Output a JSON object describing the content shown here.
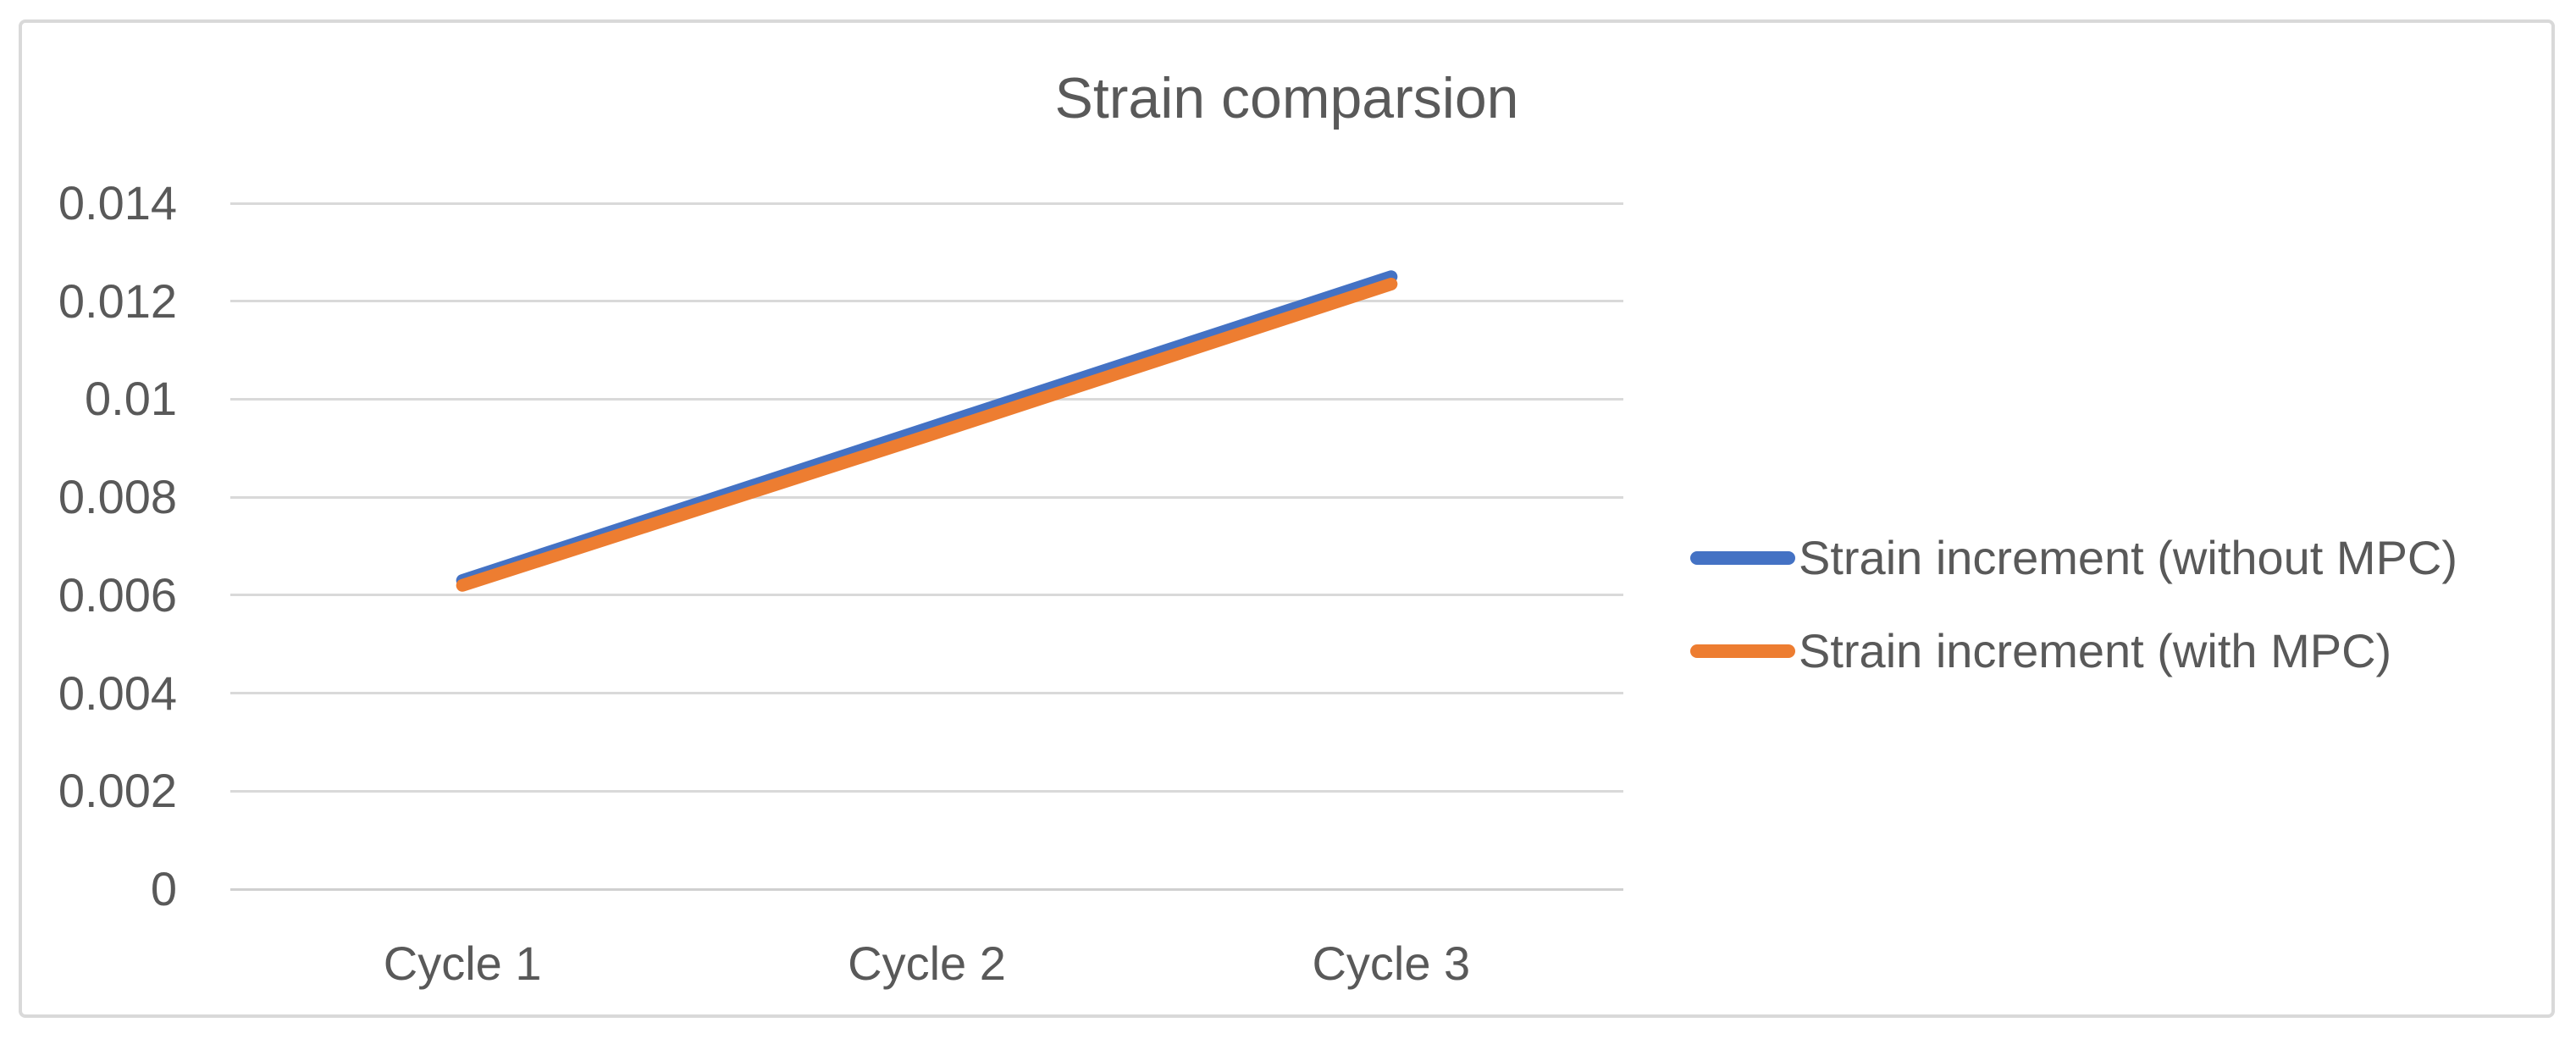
{
  "chart": {
    "title": "Strain comparsion"
  },
  "chart_data": {
    "type": "line",
    "title": "Strain comparsion",
    "categories": [
      "Cycle 1",
      "Cycle 2",
      "Cycle 3"
    ],
    "series": [
      {
        "name": "Strain increment (without MPC)",
        "color": "#4472C4",
        "values": [
          0.0063,
          0.0094,
          0.0125
        ]
      },
      {
        "name": "Strain increment (with MPC)",
        "color": "#ED7D31",
        "values": [
          0.0062,
          0.00925,
          0.01235
        ]
      }
    ],
    "xlabel": "",
    "ylabel": "",
    "ylim": [
      0,
      0.014
    ],
    "ytick_step": 0.002,
    "yticks": [
      0,
      0.002,
      0.004,
      0.006,
      0.008,
      0.01,
      0.012,
      0.014
    ],
    "ytick_labels": [
      "0",
      "0.002",
      "0.004",
      "0.006",
      "0.008",
      "0.01",
      "0.012",
      "0.014"
    ],
    "grid": true,
    "legend_position": "right",
    "line_style": "solid",
    "colors": {
      "gridline": "#D9D9D9",
      "text": "#595959",
      "border": "#D9D9D9",
      "background": "#FFFFFF"
    }
  }
}
